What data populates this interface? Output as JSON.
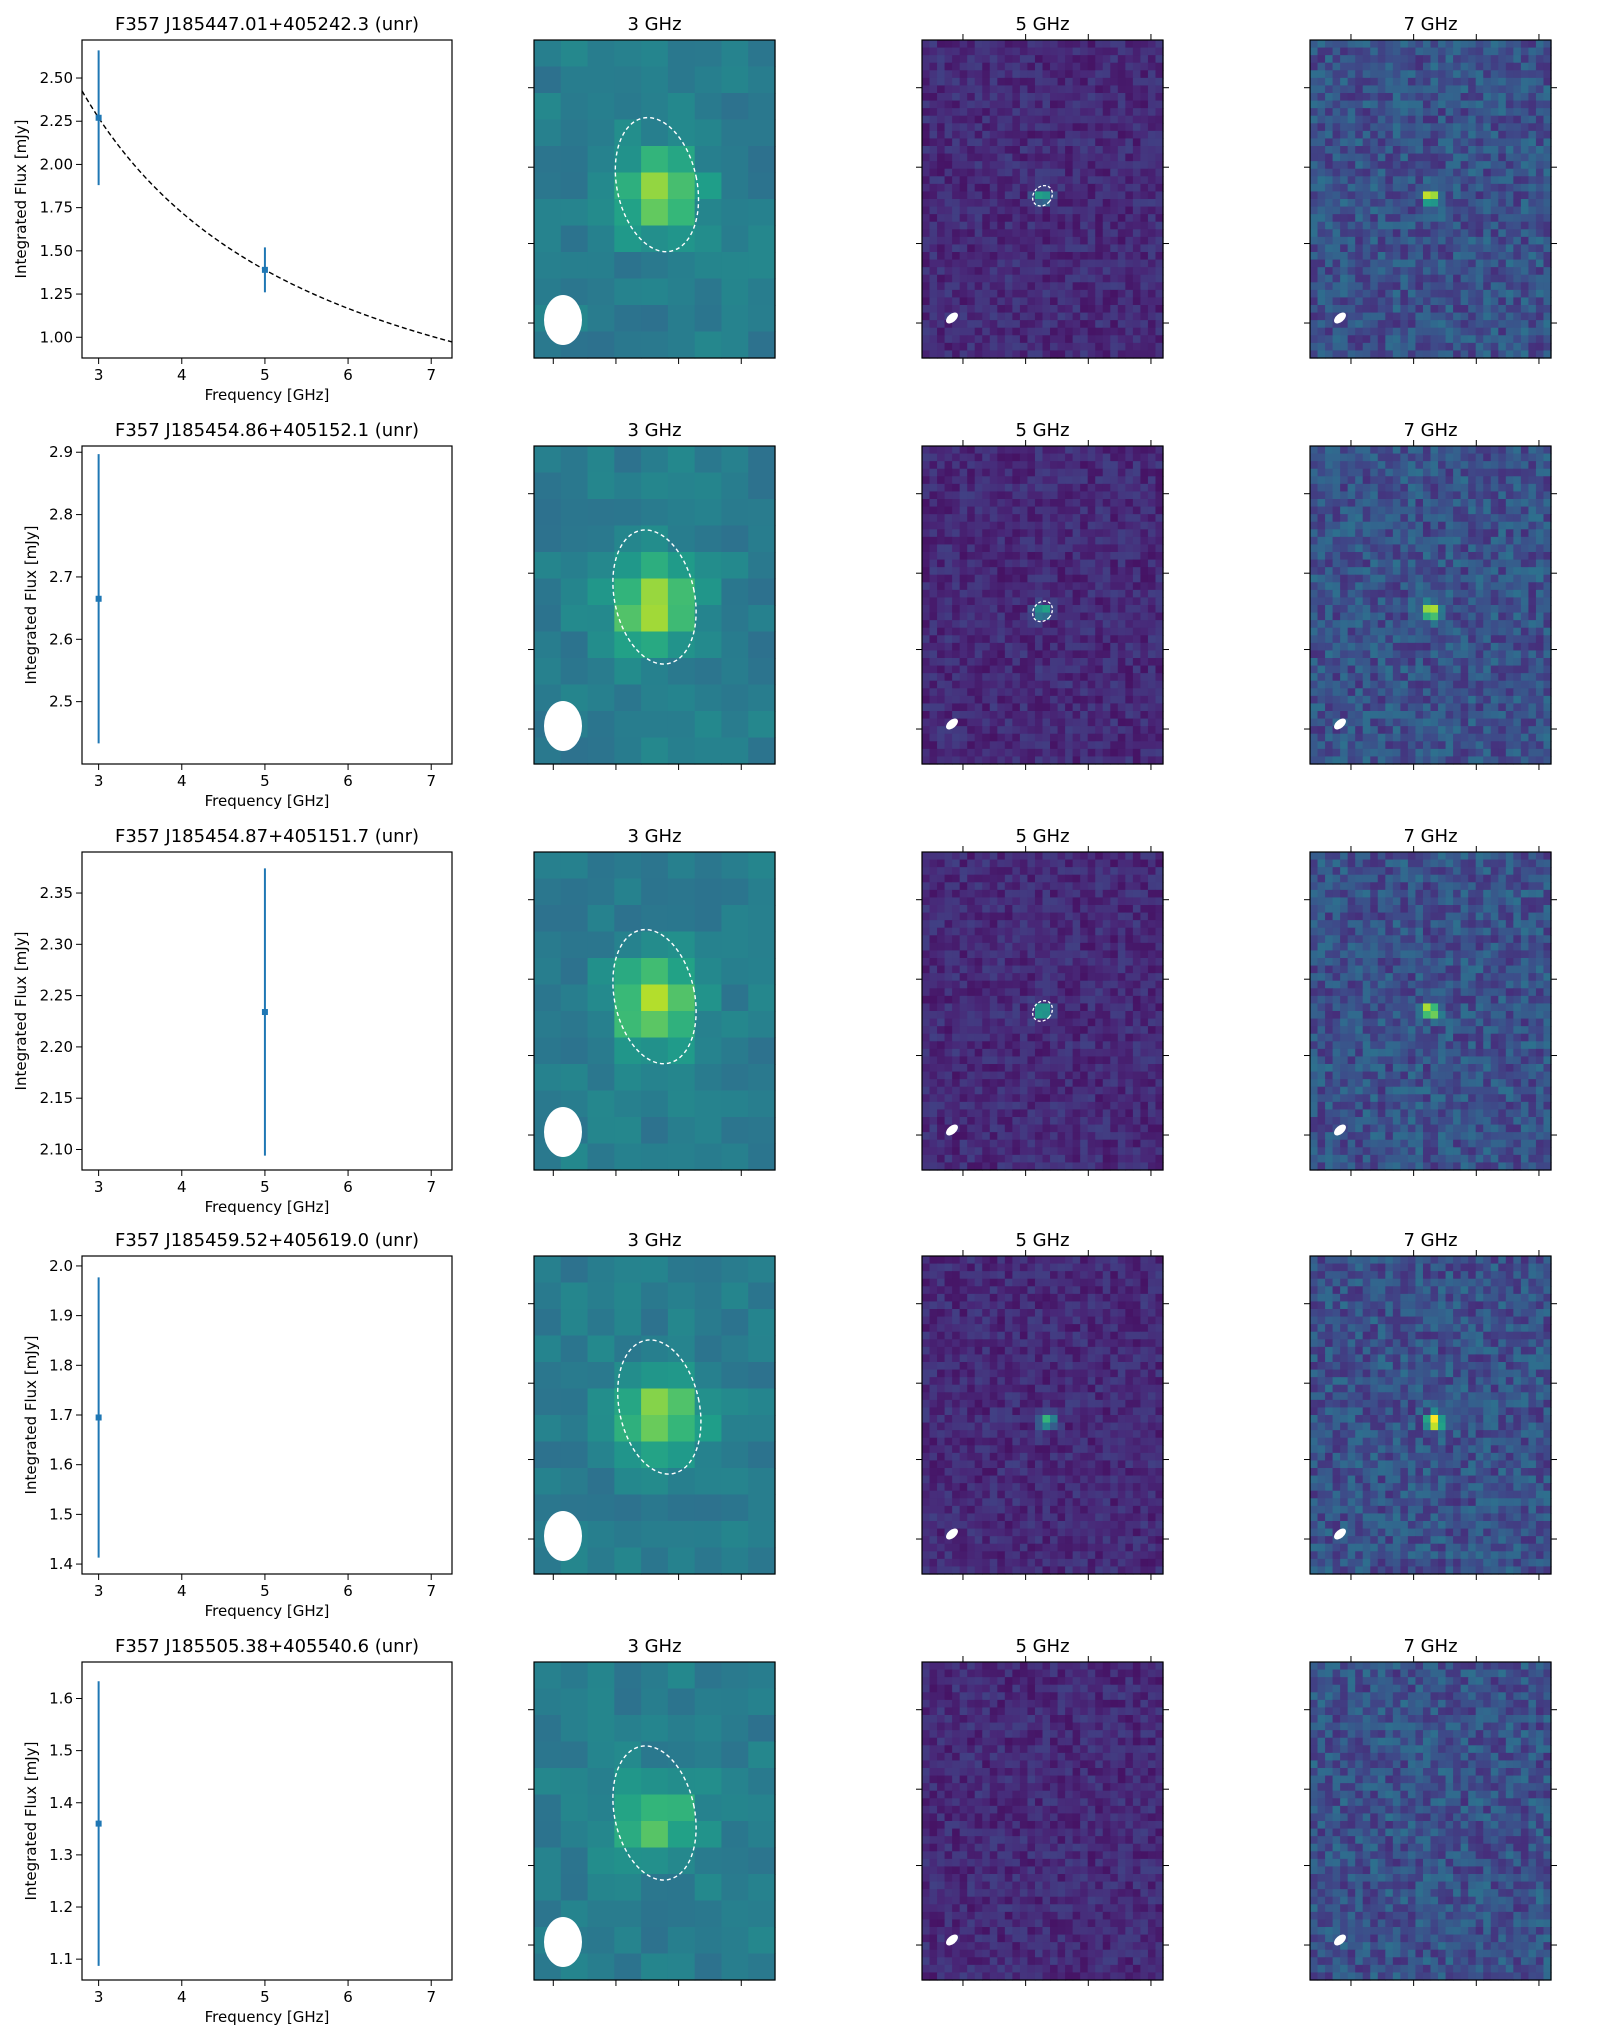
{
  "figure": {
    "thumb_titles": [
      "3 GHz",
      "5 GHz",
      "7 GHz"
    ],
    "colormap": "viridis",
    "colors": {
      "data": "#1f77b4",
      "fit": "#000000",
      "contour": "#ffffff",
      "beam": "#ffffff"
    }
  },
  "chart_data": [
    {
      "type": "scatter",
      "title": "F357 J185447.01+405242.3 (unr)",
      "xlabel": "Frequency [GHz]",
      "ylabel": "Integrated Flux [mJy]",
      "xlim": [
        2.8,
        7.25
      ],
      "ylim": [
        0.88,
        2.72
      ],
      "xticks": [
        "3",
        "4",
        "5",
        "6",
        "7"
      ],
      "yticks": [
        "1.00",
        "1.25",
        "1.50",
        "1.75",
        "2.00",
        "2.25",
        "2.50"
      ],
      "points": [
        {
          "x": 3,
          "y": 2.27,
          "err": 0.39
        },
        {
          "x": 5,
          "y": 1.39,
          "err": 0.13
        }
      ],
      "fit": {
        "style": "dashed",
        "shape": "power-law",
        "anchors": [
          [
            3,
            2.27
          ],
          [
            5,
            1.39
          ]
        ]
      },
      "thumbnails": [
        {
          "label": "3 GHz",
          "beam": "large",
          "source": {
            "cx": 0.51,
            "cy": 0.48,
            "strength": 0.42
          },
          "contour": true
        },
        {
          "label": "5 GHz",
          "beam": "small",
          "source": {
            "cx": 0.5,
            "cy": 0.49,
            "strength": 0.55
          },
          "contour": true
        },
        {
          "label": "7 GHz",
          "beam": "small",
          "source": {
            "cx": 0.5,
            "cy": 0.49,
            "strength": 0.72
          },
          "contour": false
        }
      ]
    },
    {
      "type": "scatter",
      "title": "F357 J185454.86+405152.1 (unr)",
      "xlabel": "Frequency [GHz]",
      "ylabel": "Integrated Flux [mJy]",
      "xlim": [
        2.8,
        7.25
      ],
      "ylim": [
        2.4,
        2.91
      ],
      "xticks": [
        "3",
        "4",
        "5",
        "6",
        "7"
      ],
      "yticks": [
        "2.5",
        "2.6",
        "2.7",
        "2.8",
        "2.9"
      ],
      "points": [
        {
          "x": 3,
          "y": 2.665,
          "err": 0.232
        }
      ],
      "thumbnails": [
        {
          "label": "3 GHz",
          "beam": "large",
          "source": {
            "cx": 0.5,
            "cy": 0.5,
            "strength": 0.45
          },
          "contour": true
        },
        {
          "label": "5 GHz",
          "beam": "small",
          "source": {
            "cx": 0.5,
            "cy": 0.52,
            "strength": 0.6
          },
          "contour": true
        },
        {
          "label": "7 GHz",
          "beam": "small",
          "source": {
            "cx": 0.5,
            "cy": 0.52,
            "strength": 0.85
          },
          "contour": false
        }
      ]
    },
    {
      "type": "scatter",
      "title": "F357 J185454.87+405151.7 (unr)",
      "xlabel": "Frequency [GHz]",
      "ylabel": "Integrated Flux [mJy]",
      "xlim": [
        2.8,
        7.25
      ],
      "ylim": [
        2.08,
        2.39
      ],
      "xticks": [
        "3",
        "4",
        "5",
        "6",
        "7"
      ],
      "yticks": [
        "2.10",
        "2.15",
        "2.20",
        "2.25",
        "2.30",
        "2.35"
      ],
      "points": [
        {
          "x": 5,
          "y": 2.234,
          "err": 0.14
        }
      ],
      "thumbnails": [
        {
          "label": "3 GHz",
          "beam": "large",
          "source": {
            "cx": 0.5,
            "cy": 0.48,
            "strength": 0.45
          },
          "contour": true
        },
        {
          "label": "5 GHz",
          "beam": "small",
          "source": {
            "cx": 0.5,
            "cy": 0.5,
            "strength": 0.6
          },
          "contour": true
        },
        {
          "label": "7 GHz",
          "beam": "small",
          "source": {
            "cx": 0.5,
            "cy": 0.5,
            "strength": 0.85
          },
          "contour": false
        }
      ]
    },
    {
      "type": "scatter",
      "title": "F357 J185459.52+405619.0 (unr)",
      "xlabel": "Frequency [GHz]",
      "ylabel": "Integrated Flux [mJy]",
      "xlim": [
        2.8,
        7.25
      ],
      "ylim": [
        1.38,
        2.02
      ],
      "xticks": [
        "3",
        "4",
        "5",
        "6",
        "7"
      ],
      "yticks": [
        "1.4",
        "1.5",
        "1.6",
        "1.7",
        "1.8",
        "1.9",
        "2.0"
      ],
      "points": [
        {
          "x": 3,
          "y": 1.695,
          "err": 0.282
        }
      ],
      "thumbnails": [
        {
          "label": "3 GHz",
          "beam": "large",
          "source": {
            "cx": 0.52,
            "cy": 0.5,
            "strength": 0.4
          },
          "contour": true
        },
        {
          "label": "5 GHz",
          "beam": "small",
          "source": {
            "cx": 0.52,
            "cy": 0.52,
            "strength": 0.6
          },
          "contour": false
        },
        {
          "label": "7 GHz",
          "beam": "small",
          "source": {
            "cx": 0.52,
            "cy": 0.52,
            "strength": 0.95
          },
          "contour": false
        }
      ]
    },
    {
      "type": "scatter",
      "title": "F357 J185505.38+405540.6 (unr)",
      "xlabel": "Frequency [GHz]",
      "ylabel": "Integrated Flux [mJy]",
      "xlim": [
        2.8,
        7.25
      ],
      "ylim": [
        1.06,
        1.67
      ],
      "xticks": [
        "3",
        "4",
        "5",
        "6",
        "7"
      ],
      "yticks": [
        "1.1",
        "1.2",
        "1.3",
        "1.4",
        "1.5",
        "1.6"
      ],
      "points": [
        {
          "x": 3,
          "y": 1.36,
          "err": 0.273
        }
      ],
      "thumbnails": [
        {
          "label": "3 GHz",
          "beam": "large",
          "source": {
            "cx": 0.5,
            "cy": 0.5,
            "strength": 0.32
          },
          "contour": true
        },
        {
          "label": "5 GHz",
          "beam": "small",
          "source": null,
          "contour": false
        },
        {
          "label": "7 GHz",
          "beam": "small",
          "source": null,
          "contour": false
        }
      ]
    }
  ]
}
